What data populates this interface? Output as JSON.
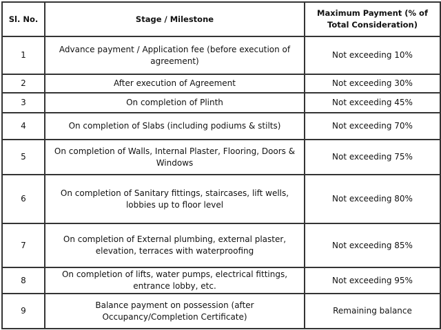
{
  "headers": [
    "Sl. No.",
    "Stage / Milestone",
    "Maximum Payment (% of Total Consideration)"
  ],
  "rows": [
    {
      "no": "1",
      "stage": "Advance payment / Application fee (before execution of agreement)",
      "payment": "Not exceeding 10%"
    },
    {
      "no": "2",
      "stage": "After execution of Agreement",
      "payment": "Not exceeding 30%"
    },
    {
      "no": "3",
      "stage": "On completion of Plinth",
      "payment": "Not exceeding 45%"
    },
    {
      "no": "4",
      "stage": "On completion of Slabs (including podiums & stilts)",
      "payment": "Not exceeding 70%"
    },
    {
      "no": "5",
      "stage": "On completion of Walls, Internal Plaster, Flooring, Doors & Windows",
      "payment": "Not exceeding 75%"
    },
    {
      "no": "6",
      "stage": "On completion of Sanitary fittings, staircases, lift wells, lobbies up to floor level",
      "payment": "Not exceeding 80%"
    },
    {
      "no": "7",
      "stage": "On completion of External plumbing, external plaster, elevation, terraces with waterproofing",
      "payment": "Not exceeding 85%"
    },
    {
      "no": "8",
      "stage": "On completion of lifts, water pumps, electrical fittings, entrance lobby, etc.",
      "payment": "Not exceeding 95%"
    },
    {
      "no": "9",
      "stage": "Balance payment on possession (after Occupancy/Completion Certificate)",
      "payment": "Remaining balance"
    }
  ]
}
